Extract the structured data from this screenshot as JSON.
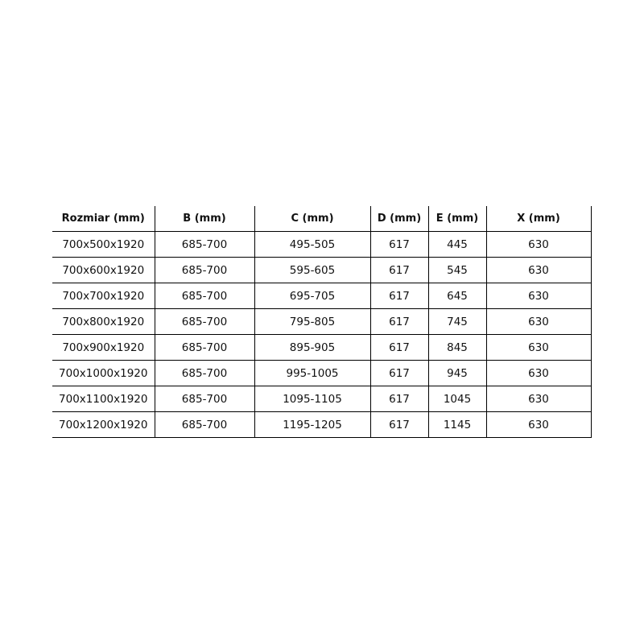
{
  "table": {
    "headers": [
      "Rozmiar (mm)",
      "B (mm)",
      "C (mm)",
      "D (mm)",
      "E (mm)",
      "X (mm)"
    ],
    "rows": [
      [
        "700x500x1920",
        "685-700",
        "495-505",
        "617",
        "445",
        "630"
      ],
      [
        "700x600x1920",
        "685-700",
        "595-605",
        "617",
        "545",
        "630"
      ],
      [
        "700x700x1920",
        "685-700",
        "695-705",
        "617",
        "645",
        "630"
      ],
      [
        "700x800x1920",
        "685-700",
        "795-805",
        "617",
        "745",
        "630"
      ],
      [
        "700x900x1920",
        "685-700",
        "895-905",
        "617",
        "845",
        "630"
      ],
      [
        "700x1000x1920",
        "685-700",
        "995-1005",
        "617",
        "945",
        "630"
      ],
      [
        "700x1100x1920",
        "685-700",
        "1095-1105",
        "617",
        "1045",
        "630"
      ],
      [
        "700x1200x1920",
        "685-700",
        "1195-1205",
        "617",
        "1145",
        "630"
      ]
    ]
  }
}
